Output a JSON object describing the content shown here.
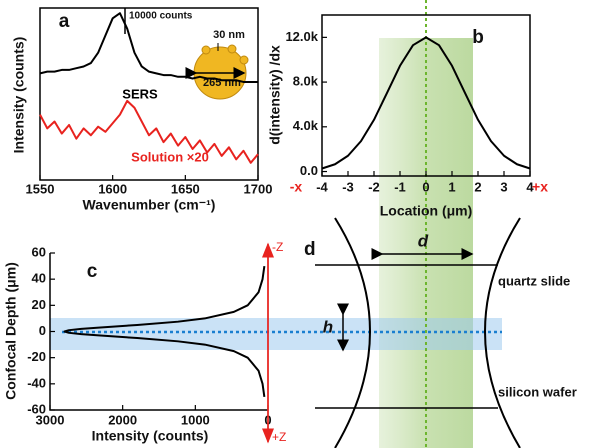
{
  "chart_data": [
    {
      "type": "line",
      "label": "a",
      "x": [
        1550,
        1555,
        1560,
        1565,
        1570,
        1575,
        1580,
        1585,
        1590,
        1595,
        1600,
        1605,
        1610,
        1615,
        1620,
        1625,
        1630,
        1635,
        1640,
        1645,
        1650,
        1655,
        1660,
        1665,
        1670,
        1675,
        1680,
        1685,
        1690,
        1695,
        1700
      ],
      "xlim": [
        1550,
        1700
      ],
      "xticks": [
        1550,
        1600,
        1650,
        1700
      ],
      "ylim": [
        0,
        100
      ],
      "x_label": "Wavenumber (cm⁻¹)",
      "y_label": "Intensity (counts)",
      "series": [
        {
          "name": "SERS",
          "color": "#000000",
          "values": [
            62,
            63,
            63,
            64,
            64,
            65,
            66,
            68,
            74,
            84,
            94,
            97,
            88,
            74,
            66,
            63,
            62,
            61,
            61,
            60,
            60,
            59,
            60,
            59,
            59,
            58,
            58,
            58,
            57,
            57,
            57
          ]
        },
        {
          "name": "Solution ×20",
          "color": "#e8231f",
          "values": [
            38,
            30,
            34,
            27,
            32,
            24,
            30,
            26,
            31,
            28,
            33,
            38,
            46,
            42,
            34,
            26,
            30,
            22,
            27,
            20,
            25,
            18,
            23,
            16,
            21,
            14,
            19,
            12,
            17,
            10,
            15
          ]
        }
      ],
      "annotations": {
        "scale_bar": "10000 counts",
        "shell": "30 nm",
        "diameter": "265 nm"
      }
    },
    {
      "type": "line",
      "label": "b",
      "x": [
        -4,
        -3.5,
        -3,
        -2.5,
        -2,
        -1.5,
        -1,
        -0.5,
        0,
        0.5,
        1,
        1.5,
        2,
        2.5,
        3,
        3.5,
        4
      ],
      "xlim": [
        -4,
        4
      ],
      "xticks": [
        -4,
        -3,
        -2,
        -1,
        0,
        1,
        2,
        3,
        4
      ],
      "ylim": [
        -400,
        14000
      ],
      "yticks": [
        {
          "value": 0,
          "label": "0.0"
        },
        {
          "value": 4000,
          "label": "4.0k"
        },
        {
          "value": 8000,
          "label": "8.0k"
        },
        {
          "value": 12000,
          "label": "12.0k"
        }
      ],
      "x_label": "Location (μm)",
      "y_label": "d(intensity) /dx",
      "x_end_labels": [
        "-x",
        "+x"
      ],
      "series": [
        {
          "color": "#000000",
          "values": [
            270,
            650,
            1410,
            2720,
            4630,
            7030,
            9460,
            11300,
            12000,
            11300,
            9460,
            7030,
            4630,
            2720,
            1410,
            650,
            270
          ]
        }
      ]
    },
    {
      "type": "line",
      "orientation": "horizontal",
      "label": "c",
      "y": [
        -50,
        -40,
        -30,
        -20,
        -15,
        -10,
        -7.5,
        -5,
        -3,
        -2,
        -1,
        0,
        1,
        2,
        3,
        5,
        7.5,
        10,
        15,
        20,
        30,
        40,
        50
      ],
      "xlim": [
        3000,
        0
      ],
      "xticks": [
        3000,
        2000,
        1000,
        0
      ],
      "ylim": [
        -60,
        60
      ],
      "yticks": [
        60,
        40,
        20,
        0,
        -20,
        -40,
        -60
      ],
      "x_label": "Intensity (counts)",
      "y_label": "Confocal Depth (μm)",
      "axis_end_labels": [
        "-Z",
        "+Z"
      ],
      "series": [
        {
          "color": "#000000",
          "values": [
            50,
            75,
            130,
            280,
            470,
            870,
            1240,
            1800,
            2330,
            2570,
            2740,
            2800,
            2740,
            2570,
            2330,
            1800,
            1240,
            870,
            470,
            280,
            130,
            75,
            50
          ]
        }
      ]
    }
  ],
  "diagram": {
    "label": "d",
    "width_label": "d",
    "height_label": "h",
    "layers": [
      "quartz slide",
      "silicon wafer"
    ]
  }
}
